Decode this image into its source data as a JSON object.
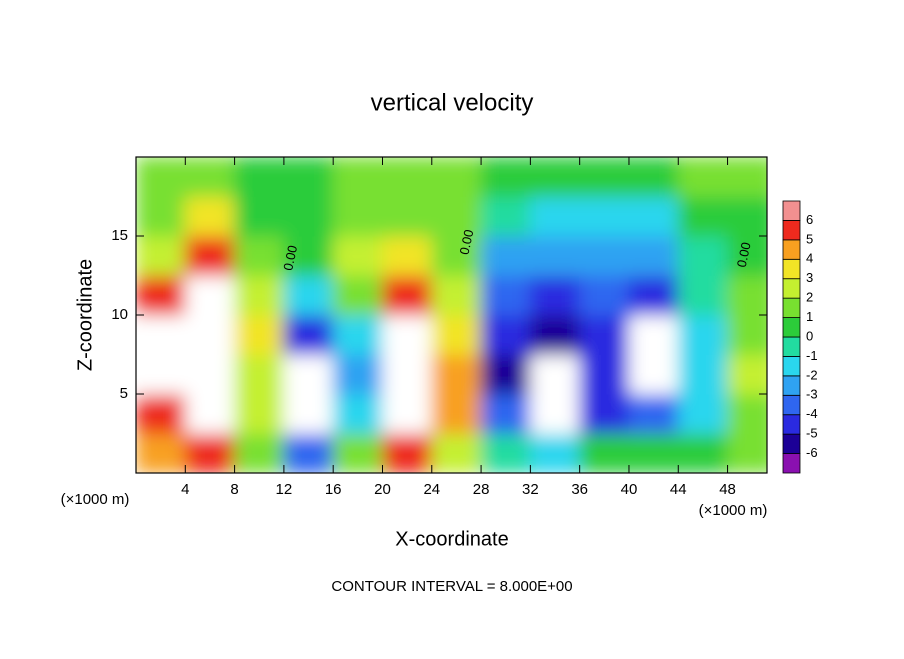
{
  "chart_data": {
    "type": "heatmap",
    "title": "vertical velocity",
    "xlabel": "X-coordinate",
    "ylabel": "Z-coordinate",
    "x_units": [
      "(×1000 m)",
      "(×1000 m)"
    ],
    "footnote": "CONTOUR INTERVAL = 8.000E+00",
    "x": [
      2,
      6,
      10,
      14,
      18,
      22,
      26,
      30,
      34,
      38,
      42,
      46,
      50
    ],
    "y": [
      1.25,
      3.75,
      6.25,
      8.75,
      11.25,
      13.75,
      16.25,
      18.75
    ],
    "z": [
      [
        4,
        5,
        1,
        -4,
        1,
        5,
        2,
        -1,
        -2,
        0,
        0,
        0,
        1
      ],
      [
        5,
        8,
        2,
        -7,
        -2,
        8,
        4,
        -4,
        -7,
        -5,
        -4,
        -2,
        1
      ],
      [
        7,
        9,
        2,
        -7,
        -3,
        9,
        4,
        -6,
        -8,
        -5,
        -7,
        -2,
        2
      ],
      [
        6,
        9,
        3,
        -5,
        -2,
        8,
        3,
        -5,
        -6,
        -5,
        -7,
        -2,
        1
      ],
      [
        5,
        8,
        2,
        -2,
        1,
        5,
        2,
        -4,
        -5,
        -4,
        -5,
        -1,
        1
      ],
      [
        2,
        5,
        1,
        0,
        2,
        3,
        1,
        -3,
        -3,
        -3,
        -3,
        -1,
        0
      ],
      [
        1,
        3,
        0.5,
        0.5,
        1,
        1,
        1,
        -1,
        -2,
        -2,
        -2,
        0,
        0
      ],
      [
        1,
        1,
        0.5,
        0.5,
        1,
        1,
        1,
        0,
        0,
        0,
        0,
        1,
        1
      ]
    ],
    "xlim": [
      0,
      51.2
    ],
    "ylim": [
      0,
      20
    ],
    "xticks": [
      4,
      8,
      12,
      16,
      20,
      24,
      28,
      32,
      36,
      40,
      44,
      48
    ],
    "yticks": [
      5,
      10,
      15
    ],
    "levels": [
      -6,
      -5,
      -4,
      -3,
      -2,
      -1,
      0,
      1,
      2,
      3,
      4,
      5,
      6
    ],
    "colors": [
      "#8a10b0",
      "#1c0096",
      "#2a2ae0",
      "#2f66f0",
      "#2fa2f2",
      "#2ad6ee",
      "#22dca0",
      "#2ccc3a",
      "#78e030",
      "#c4f030",
      "#f2e426",
      "#f8a020",
      "#ee2a1e",
      "#f29090"
    ],
    "out_of_range_color": "#ffffff",
    "contour_labels": [
      {
        "text": "0.00",
        "x": 12.6,
        "y": 13.6
      },
      {
        "text": "0.00",
        "x": 26.9,
        "y": 14.6
      },
      {
        "text": "0.00",
        "x": 49.4,
        "y": 13.8
      }
    ]
  }
}
